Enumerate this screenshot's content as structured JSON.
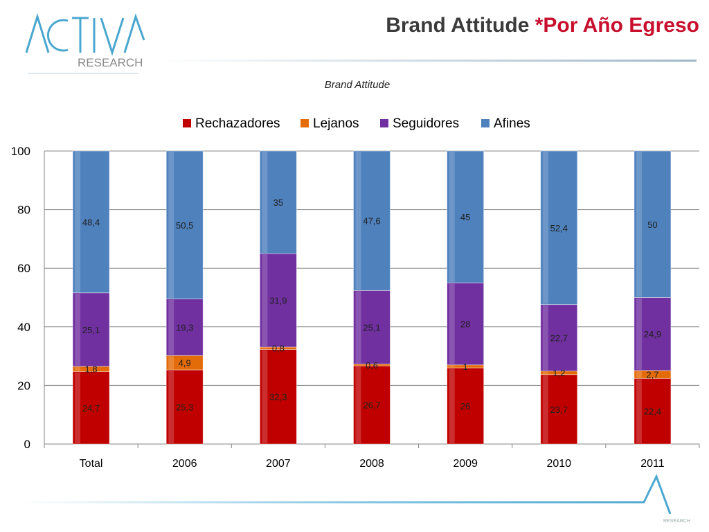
{
  "header": {
    "title_main": "Brand Attitude ",
    "title_accent": "*Por Año Egreso",
    "logo_word": "ACTIVA",
    "logo_sub": "RESEARCH",
    "footer_logo_sub": "RESEARCH"
  },
  "colors": {
    "rechazadores": "#c00000",
    "lejanos": "#e36c09",
    "seguidores": "#7030a0",
    "afines": "#4f81bd",
    "brand": "#4aa7cf"
  },
  "chart_data": {
    "type": "bar",
    "stacked": true,
    "title": "Brand Attitude",
    "categories": [
      "Total",
      "2006",
      "2007",
      "2008",
      "2009",
      "2010",
      "2011"
    ],
    "series": [
      {
        "name": "Rechazadores",
        "values": [
          24.7,
          25.3,
          32.3,
          26.7,
          26,
          23.7,
          22.4
        ],
        "labels": [
          "24,7",
          "25,3",
          "32,3",
          "26,7",
          "26",
          "23,7",
          "22,4"
        ]
      },
      {
        "name": "Lejanos",
        "values": [
          1.8,
          4.9,
          0.8,
          0.6,
          1,
          1.2,
          2.7
        ],
        "labels": [
          "1,8",
          "4,9",
          "0,8",
          "0,6",
          "1",
          "1,2",
          "2,7"
        ]
      },
      {
        "name": "Seguidores",
        "values": [
          25.1,
          19.3,
          31.9,
          25.1,
          28,
          22.7,
          24.9
        ],
        "labels": [
          "25,1",
          "19,3",
          "31,9",
          "25,1",
          "28",
          "22,7",
          "24,9"
        ]
      },
      {
        "name": "Afines",
        "values": [
          48.4,
          50.5,
          35,
          47.6,
          45,
          52.4,
          50
        ],
        "labels": [
          "48,4",
          "50,5",
          "35",
          "47,6",
          "45",
          "52,4",
          "50"
        ]
      }
    ],
    "yticks": [
      "0",
      "20",
      "40",
      "60",
      "80",
      "100"
    ],
    "ylim": [
      0,
      100
    ],
    "legend_position": "top",
    "grid": true
  }
}
